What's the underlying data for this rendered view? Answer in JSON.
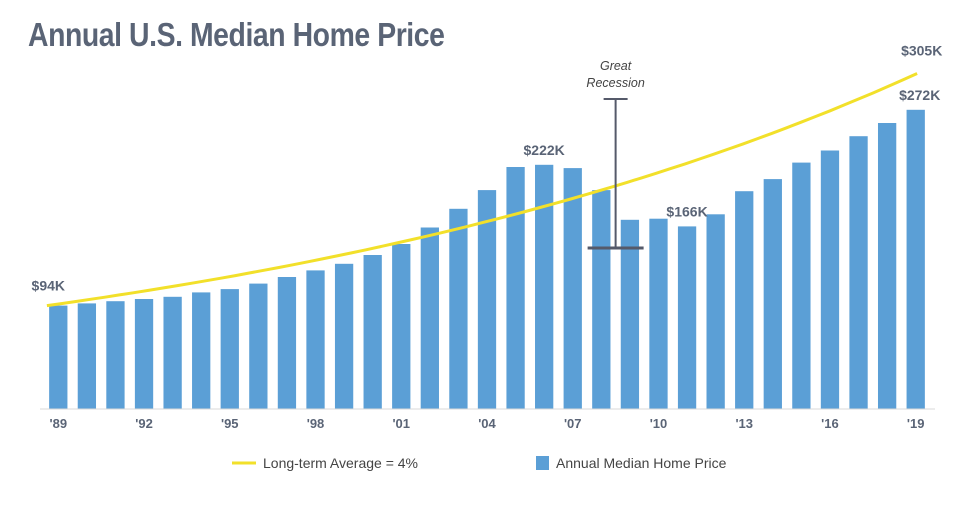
{
  "chart_data": {
    "type": "bar",
    "title": "Annual U.S. Median Home Price",
    "categories": [
      "'89",
      "'90",
      "'91",
      "'92",
      "'93",
      "'94",
      "'95",
      "'96",
      "'97",
      "'98",
      "'99",
      "'00",
      "'01",
      "'02",
      "'03",
      "'04",
      "'05",
      "'06",
      "'07",
      "'08",
      "'09",
      "'10",
      "'11",
      "'12",
      "'13",
      "'14",
      "'15",
      "'16",
      "'17",
      "'18",
      "'19"
    ],
    "x_tick_labels": [
      "'89",
      "'92",
      "'95",
      "'98",
      "'01",
      "'04",
      "'07",
      "'10",
      "'13",
      "'16",
      "'19"
    ],
    "series": [
      {
        "name": "Annual Median Home Price",
        "type": "bar",
        "color": "#5b9fd6",
        "values": [
          94,
          96,
          98,
          100,
          102,
          106,
          109,
          114,
          120,
          126,
          132,
          140,
          150,
          165,
          182,
          199,
          220,
          222,
          219,
          199,
          172,
          173,
          166,
          177,
          198,
          209,
          224,
          235,
          248,
          260,
          272
        ]
      },
      {
        "name": "Long-term Average = 4%",
        "type": "line",
        "color": "#f2e02a",
        "growth_rate": 0.04,
        "start_value": 94,
        "end_value": 305
      }
    ],
    "data_labels": [
      {
        "category": "'89",
        "text": "$94K"
      },
      {
        "category": "'06",
        "text": "$222K"
      },
      {
        "category": "'11",
        "text": "$166K"
      },
      {
        "category": "'19",
        "text": "$305K",
        "series": "Long-term Average = 4%"
      },
      {
        "category": "'19",
        "text": "$272K"
      }
    ],
    "annotations": [
      {
        "text_lines": [
          "Great",
          "Recession"
        ],
        "category": "'08"
      }
    ],
    "ylim": [
      0,
      310
    ],
    "grid": false,
    "legend": {
      "position": "bottom",
      "items": [
        "Long-term Average = 4%",
        "Annual Median Home Price"
      ]
    }
  }
}
